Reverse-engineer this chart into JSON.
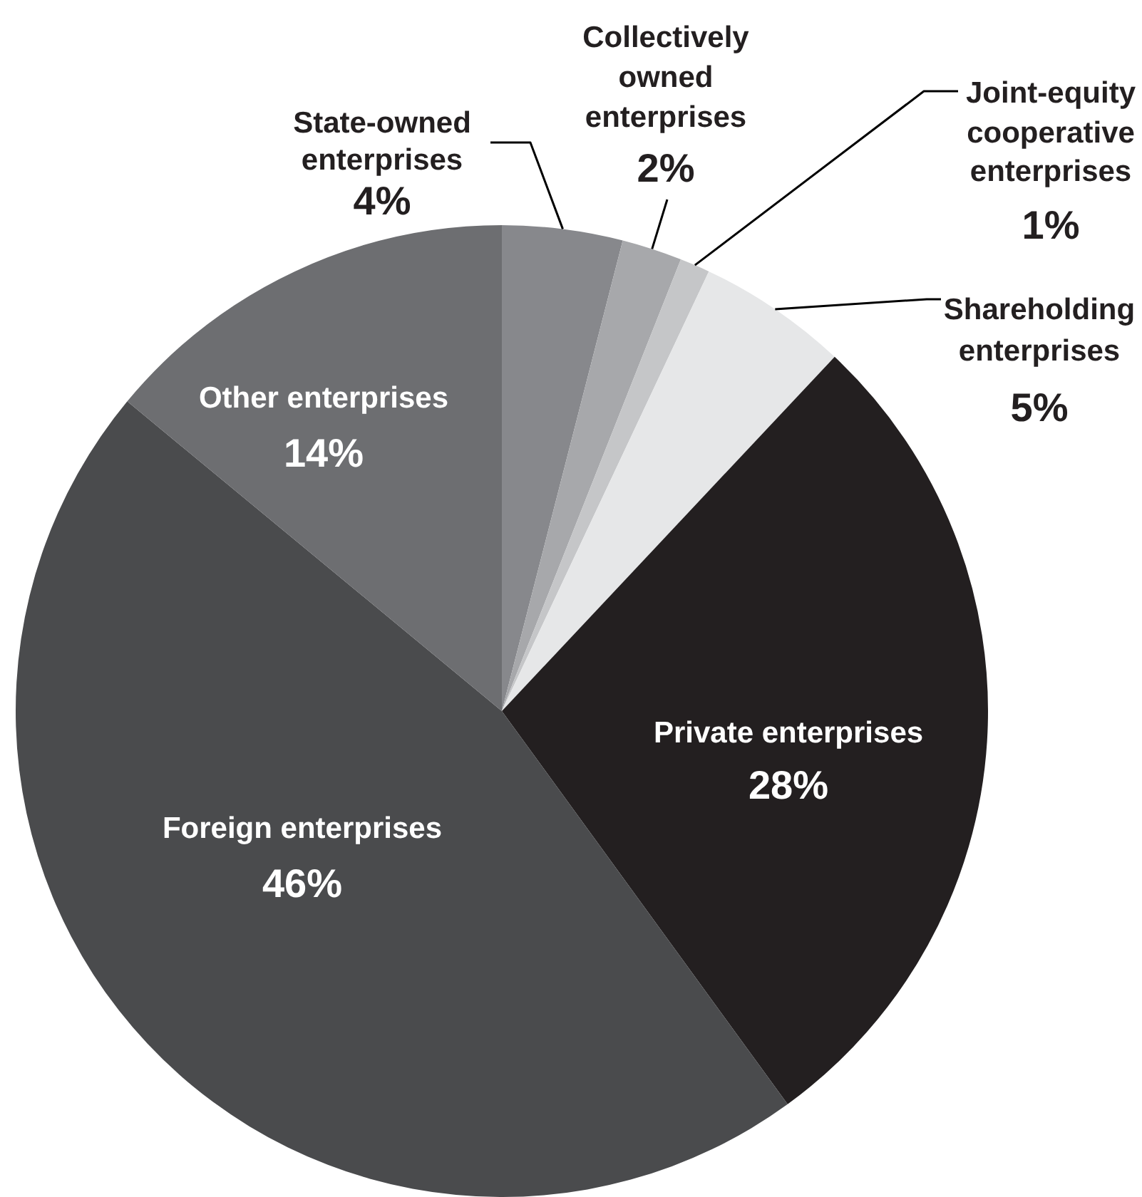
{
  "chart_data": {
    "type": "pie",
    "categories": [
      "State-owned enterprises",
      "Collectively owned enterprises",
      "Joint-equity cooperative enterprises",
      "Shareholding enterprises",
      "Private enterprises",
      "Foreign enterprises",
      "Other enterprises"
    ],
    "values": [
      4,
      2,
      1,
      5,
      28,
      46,
      14
    ],
    "colors": [
      "#87888c",
      "#a7a8ab",
      "#c5c6c8",
      "#e6e7e8",
      "#231f20",
      "#4a4b4d",
      "#6d6e71"
    ],
    "value_labels": [
      "4%",
      "2%",
      "1%",
      "5%",
      "28%",
      "46%",
      "14%"
    ]
  }
}
